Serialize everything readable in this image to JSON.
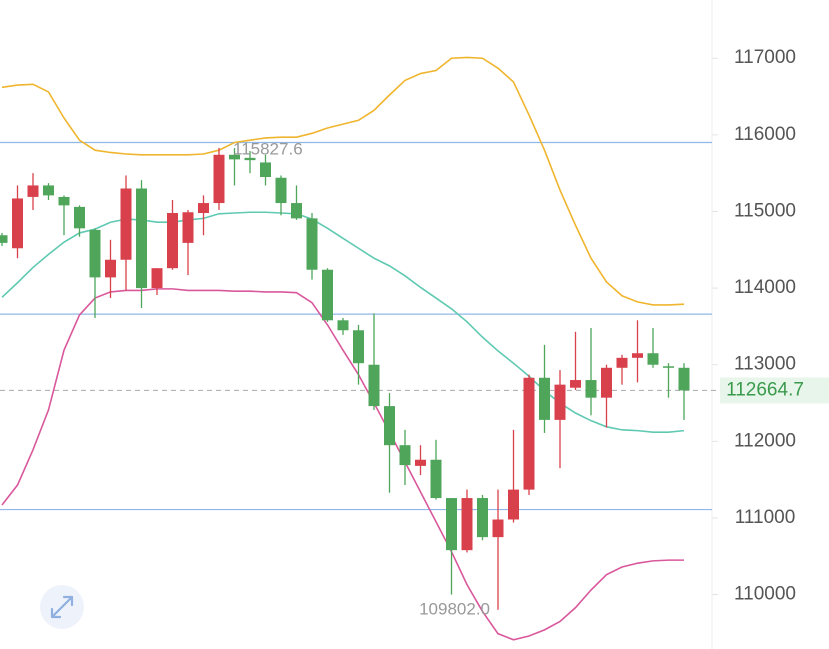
{
  "chart_data": {
    "type": "candlestick",
    "up_color": "#d8414c",
    "down_color": "#4fa65b",
    "open": [
      114690,
      114520,
      115190,
      115340,
      115190,
      115060,
      114760,
      114140,
      114370,
      115300,
      114000,
      114260,
      114590,
      114980,
      115110,
      115740,
      115700,
      115640,
      115440,
      115110,
      114910,
      114240,
      113580,
      113450,
      113000,
      112460,
      111950,
      111680,
      111760,
      111260,
      110580,
      111260,
      110750,
      110980,
      111370,
      112830,
      112280,
      112700,
      112800,
      112570,
      112960,
      113090,
      113150,
      112980,
      112960
    ],
    "high": [
      114720,
      115340,
      115500,
      115370,
      115210,
      115080,
      114780,
      114630,
      115470,
      115410,
      114260,
      115150,
      115020,
      115210,
      115830,
      115827.6,
      115790,
      115740,
      115470,
      115340,
      114980,
      114260,
      113610,
      113520,
      113670,
      112630,
      112150,
      111950,
      112020,
      111260,
      111370,
      111300,
      111370,
      112150,
      112870,
      113260,
      112930,
      113430,
      113480,
      113000,
      113130,
      113580,
      113480,
      113020,
      113020
    ],
    "low": [
      114550,
      114390,
      115020,
      115150,
      114690,
      114670,
      113610,
      113870,
      113970,
      113740,
      113910,
      114240,
      114170,
      114690,
      115020,
      115340,
      115500,
      115340,
      114950,
      114890,
      114110,
      113560,
      113390,
      112740,
      112410,
      111330,
      111430,
      111560,
      111240,
      110000,
      110550,
      110710,
      109802,
      110940,
      111300,
      112110,
      111650,
      112670,
      112340,
      112180,
      112740,
      112770,
      112960,
      112570,
      112280
    ],
    "close": [
      114590,
      115170,
      115340,
      115210,
      115080,
      114780,
      114140,
      114370,
      115300,
      114000,
      114260,
      114980,
      114990,
      115110,
      115740,
      115680,
      115670,
      115450,
      115110,
      114910,
      114240,
      113580,
      113450,
      113020,
      112460,
      111950,
      111690,
      111760,
      111260,
      110580,
      111260,
      110750,
      110980,
      111370,
      112830,
      112280,
      112740,
      112800,
      112570,
      112960,
      113090,
      113150,
      113000,
      112960,
      112664.7
    ],
    "bands": {
      "upper": {
        "color": "#f0b52e",
        "values": [
          116620,
          116650,
          116660,
          116560,
          116220,
          115930,
          115800,
          115770,
          115750,
          115740,
          115740,
          115740,
          115740,
          115750,
          115800,
          115900,
          115930,
          115960,
          115970,
          115970,
          116020,
          116090,
          116140,
          116190,
          116320,
          116520,
          116710,
          116800,
          116840,
          117000,
          117010,
          117000,
          116870,
          116690,
          116260,
          115800,
          115280,
          114820,
          114390,
          114080,
          113900,
          113820,
          113780,
          113780,
          113790
        ]
      },
      "middle": {
        "color": "#5fc9b2",
        "values": [
          113880,
          114070,
          114270,
          114440,
          114600,
          114720,
          114770,
          114860,
          114900,
          114890,
          114860,
          114860,
          114890,
          114910,
          114970,
          114980,
          114990,
          114990,
          114980,
          114970,
          114900,
          114780,
          114650,
          114520,
          114390,
          114290,
          114160,
          114010,
          113870,
          113730,
          113560,
          113360,
          113180,
          113020,
          112850,
          112660,
          112500,
          112370,
          112270,
          112190,
          112150,
          112140,
          112120,
          112120,
          112140
        ]
      },
      "lower": {
        "color": "#d9589c",
        "values": [
          111170,
          111430,
          111890,
          112410,
          113190,
          113650,
          113870,
          113950,
          113970,
          113970,
          113990,
          113990,
          113970,
          113970,
          113970,
          113960,
          113960,
          113950,
          113950,
          113940,
          113810,
          113520,
          113190,
          112870,
          112500,
          112120,
          111730,
          111340,
          110950,
          110560,
          110130,
          109780,
          109490,
          109410,
          109460,
          109540,
          109650,
          109830,
          110060,
          110260,
          110360,
          110410,
          110440,
          110450,
          110450
        ]
      }
    },
    "levels": {
      "color": "#8fb8e8",
      "values": [
        115900,
        113660,
        111110
      ]
    },
    "extremes": [
      {
        "value": 115827.6,
        "label": "115827.6"
      },
      {
        "value": 109802,
        "label": "109802.0"
      }
    ],
    "ylim": [
      109290,
      117760
    ],
    "yticks": [
      110000,
      111000,
      112000,
      113000,
      114000,
      115000,
      116000,
      117000
    ]
  }
}
